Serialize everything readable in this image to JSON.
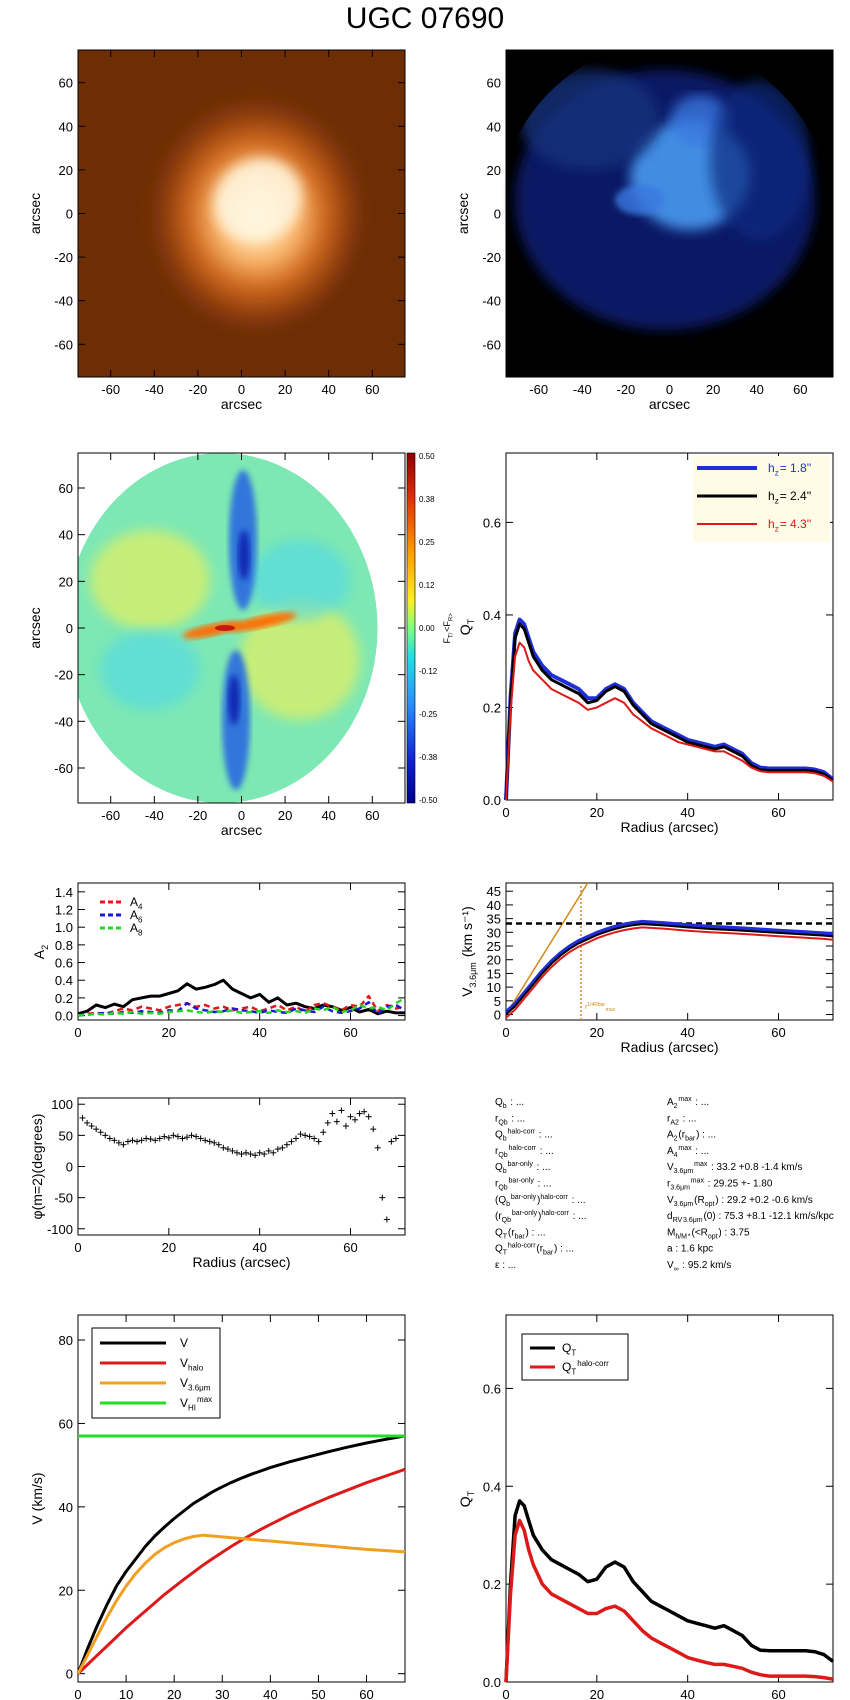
{
  "title": "UGC 07690",
  "colors": {
    "hz1": "#1f2ed6",
    "hz2": "#000000",
    "hz3": "#dd1a1a",
    "orange": "#f0a020",
    "green": "#22dd22",
    "vopt": "#d08a1a"
  },
  "chart_data": [
    {
      "id": "image-orange",
      "type": "heatmap",
      "description_visible": "galaxy image",
      "xlabel": "arcsec",
      "ylabel": "arcsec",
      "xlim": [
        -75,
        75
      ],
      "ylim": [
        -75,
        75
      ],
      "xticks": [
        -60,
        -40,
        -20,
        0,
        20,
        40,
        60
      ],
      "yticks": [
        -60,
        -40,
        -20,
        0,
        20,
        40,
        60
      ]
    },
    {
      "id": "image-blue",
      "type": "heatmap",
      "xlabel": "arcsec",
      "ylabel": "arcsec",
      "xlim": [
        -75,
        75
      ],
      "ylim": [
        -75,
        75
      ],
      "xticks": [
        -60,
        -40,
        -20,
        0,
        20,
        40,
        60
      ],
      "yticks": [
        -60,
        -40,
        -20,
        0,
        20,
        40,
        60
      ]
    },
    {
      "id": "force-map",
      "type": "heatmap",
      "xlabel": "arcsec",
      "ylabel": "arcsec",
      "xlim": [
        -75,
        75
      ],
      "ylim": [
        -75,
        75
      ],
      "xticks": [
        -60,
        -40,
        -20,
        0,
        20,
        40,
        60
      ],
      "yticks": [
        -60,
        -40,
        -20,
        0,
        20,
        40,
        60
      ],
      "colorbar_label": "F_T/<F_R>",
      "colorbar_ticks": [
        "0.50",
        "0.38",
        "0.25",
        "0.12",
        "0.00",
        "-0.12",
        "-0.25",
        "-0.38",
        "-0.50"
      ]
    },
    {
      "id": "qt-hz",
      "type": "line",
      "xlabel": "Radius (arcsec)",
      "ylabel": "Q_T",
      "xlim": [
        0,
        72
      ],
      "ylim": [
        0,
        0.75
      ],
      "xticks": [
        0,
        20,
        40,
        60
      ],
      "yticks": [
        "0.0",
        "0.2",
        "0.4",
        "0.6"
      ],
      "legend": [
        "h_z=  1.8''",
        "h_z=  2.4''",
        "h_z=  4.3''"
      ],
      "x": [
        0,
        1,
        2,
        3,
        4,
        5,
        6,
        8,
        10,
        12,
        14,
        16,
        18,
        20,
        22,
        24,
        26,
        28,
        30,
        32,
        34,
        36,
        38,
        40,
        42,
        44,
        46,
        48,
        50,
        52,
        54,
        56,
        58,
        60,
        62,
        64,
        66,
        68,
        70,
        72
      ],
      "series": [
        {
          "name": "h_z=  1.8''",
          "values": [
            0,
            0.22,
            0.36,
            0.39,
            0.38,
            0.35,
            0.32,
            0.29,
            0.27,
            0.26,
            0.25,
            0.24,
            0.22,
            0.22,
            0.24,
            0.25,
            0.24,
            0.21,
            0.19,
            0.17,
            0.16,
            0.15,
            0.14,
            0.13,
            0.125,
            0.12,
            0.115,
            0.12,
            0.11,
            0.1,
            0.08,
            0.07,
            0.068,
            0.068,
            0.068,
            0.068,
            0.068,
            0.066,
            0.06,
            0.045
          ]
        },
        {
          "name": "h_z=  2.4''",
          "values": [
            0,
            0.21,
            0.35,
            0.38,
            0.37,
            0.34,
            0.31,
            0.28,
            0.26,
            0.25,
            0.24,
            0.23,
            0.21,
            0.215,
            0.235,
            0.245,
            0.235,
            0.205,
            0.185,
            0.165,
            0.155,
            0.145,
            0.135,
            0.125,
            0.12,
            0.115,
            0.11,
            0.115,
            0.105,
            0.095,
            0.075,
            0.065,
            0.064,
            0.064,
            0.064,
            0.064,
            0.064,
            0.062,
            0.056,
            0.042
          ]
        },
        {
          "name": "h_z=  4.3''",
          "values": [
            0,
            0.19,
            0.31,
            0.34,
            0.33,
            0.3,
            0.28,
            0.26,
            0.24,
            0.23,
            0.22,
            0.21,
            0.195,
            0.2,
            0.21,
            0.22,
            0.21,
            0.185,
            0.17,
            0.155,
            0.145,
            0.135,
            0.125,
            0.12,
            0.115,
            0.11,
            0.105,
            0.105,
            0.095,
            0.085,
            0.07,
            0.062,
            0.06,
            0.06,
            0.06,
            0.06,
            0.06,
            0.058,
            0.052,
            0.04
          ]
        }
      ]
    },
    {
      "id": "fourier-amp",
      "type": "line",
      "ylabel": "A_2",
      "xlim": [
        0,
        72
      ],
      "ylim": [
        -0.05,
        1.5
      ],
      "xticks": [
        0,
        20,
        40,
        60
      ],
      "yticks": [
        "0.0",
        "0.2",
        "0.4",
        "0.6",
        "0.8",
        "1.0",
        "1.2",
        "1.4"
      ],
      "legend": [
        "A_4",
        "A_6",
        "A_8"
      ],
      "x": [
        0,
        2,
        4,
        6,
        8,
        10,
        12,
        14,
        16,
        18,
        20,
        22,
        24,
        26,
        28,
        30,
        32,
        34,
        36,
        38,
        40,
        42,
        44,
        46,
        48,
        50,
        52,
        54,
        56,
        58,
        60,
        62,
        64,
        66,
        68,
        70,
        72
      ],
      "series": [
        {
          "name": "A_2",
          "values": [
            0.02,
            0.05,
            0.12,
            0.09,
            0.13,
            0.1,
            0.18,
            0.2,
            0.22,
            0.22,
            0.25,
            0.28,
            0.36,
            0.3,
            0.32,
            0.35,
            0.4,
            0.3,
            0.25,
            0.2,
            0.24,
            0.15,
            0.2,
            0.12,
            0.14,
            0.1,
            0.08,
            0.12,
            0.1,
            0.06,
            0.09,
            0.04,
            0.07,
            0.02,
            0.05,
            0.03,
            0.03
          ]
        },
        {
          "name": "A_4",
          "values": [
            0.0,
            0.02,
            0.03,
            0.02,
            0.05,
            0.08,
            0.06,
            0.1,
            0.08,
            0.06,
            0.1,
            0.12,
            0.14,
            0.1,
            0.12,
            0.08,
            0.1,
            0.06,
            0.08,
            0.1,
            0.05,
            0.08,
            0.12,
            0.06,
            0.1,
            0.04,
            0.12,
            0.14,
            0.1,
            0.06,
            0.12,
            0.1,
            0.22,
            0.05,
            0.12,
            0.08,
            0.1
          ]
        },
        {
          "name": "A_6",
          "values": [
            0.0,
            0.01,
            0.02,
            0.03,
            0.02,
            0.04,
            0.03,
            0.05,
            0.04,
            0.03,
            0.06,
            0.05,
            0.14,
            0.08,
            0.06,
            0.04,
            0.05,
            0.08,
            0.06,
            0.05,
            0.03,
            0.06,
            0.04,
            0.03,
            0.08,
            0.06,
            0.04,
            0.1,
            0.05,
            0.03,
            0.05,
            0.08,
            0.15,
            0.02,
            0.1,
            0.12,
            0.06
          ]
        },
        {
          "name": "A_8",
          "values": [
            0.0,
            0.01,
            0.02,
            0.01,
            0.03,
            0.02,
            0.04,
            0.02,
            0.03,
            0.02,
            0.04,
            0.05,
            0.06,
            0.04,
            0.03,
            0.05,
            0.04,
            0.06,
            0.03,
            0.04,
            0.05,
            0.03,
            0.06,
            0.04,
            0.05,
            0.03,
            0.08,
            0.06,
            0.1,
            0.04,
            0.06,
            0.12,
            0.08,
            0.1,
            0.06,
            0.14,
            0.2
          ]
        }
      ]
    },
    {
      "id": "rotation-curve",
      "type": "line",
      "xlabel": "Radius (arcsec)",
      "ylabel": "V_3.6μm (km s⁻¹)",
      "xlim": [
        0,
        72
      ],
      "ylim": [
        -2,
        48
      ],
      "xticks": [
        0,
        20,
        40,
        60
      ],
      "yticks": [
        "0",
        "5",
        "10",
        "15",
        "20",
        "25",
        "30",
        "35",
        "40",
        "45"
      ],
      "annotation": "r^{1/4Rbar}_{max}",
      "vmax": 33.2,
      "vline_x": 16.5,
      "x": [
        0,
        2,
        4,
        6,
        8,
        10,
        12,
        14,
        16,
        18,
        20,
        22,
        24,
        26,
        28,
        30,
        35,
        40,
        45,
        50,
        55,
        60,
        65,
        70,
        72
      ],
      "series": [
        {
          "name": "V_3.6μm",
          "values": [
            0,
            3,
            7,
            11,
            15,
            18.5,
            21.5,
            24,
            26,
            27.5,
            29,
            30.2,
            31.2,
            32.0,
            32.6,
            33.0,
            32.5,
            31.8,
            31.2,
            30.8,
            30.3,
            29.8,
            29.3,
            28.8,
            28.5
          ]
        }
      ]
    },
    {
      "id": "phase",
      "type": "scatter",
      "xlabel": "Radius (arcsec)",
      "ylabel": "φ(m=2)(degrees)",
      "xlim": [
        0,
        72
      ],
      "ylim": [
        -110,
        110
      ],
      "xticks": [
        0,
        20,
        40,
        60
      ],
      "yticks": [
        "100",
        "50",
        "0",
        "-50",
        "-100"
      ],
      "x": [
        1,
        2,
        3,
        4,
        5,
        6,
        7,
        8,
        9,
        10,
        11,
        12,
        13,
        14,
        15,
        16,
        17,
        18,
        19,
        20,
        21,
        22,
        23,
        24,
        25,
        26,
        27,
        28,
        29,
        30,
        31,
        32,
        33,
        34,
        35,
        36,
        37,
        38,
        39,
        40,
        41,
        42,
        43,
        44,
        45,
        46,
        47,
        48,
        49,
        50,
        51,
        52,
        53,
        54,
        55,
        56,
        57,
        58,
        59,
        60,
        61,
        62,
        63,
        64,
        65,
        66,
        67,
        68,
        69,
        70
      ],
      "y": [
        78,
        70,
        65,
        60,
        55,
        50,
        45,
        42,
        38,
        35,
        40,
        42,
        40,
        42,
        45,
        44,
        42,
        45,
        48,
        46,
        50,
        48,
        45,
        47,
        50,
        48,
        45,
        42,
        40,
        38,
        35,
        30,
        28,
        25,
        22,
        20,
        22,
        20,
        18,
        22,
        20,
        25,
        22,
        28,
        30,
        35,
        40,
        45,
        52,
        50,
        48,
        45,
        40,
        55,
        70,
        85,
        72,
        90,
        65,
        80,
        75,
        85,
        88,
        80,
        60,
        30,
        -50,
        -85,
        40,
        45
      ]
    },
    {
      "id": "velocity-decomp",
      "type": "line",
      "xlabel": "Radius (arcsec)",
      "ylabel": "V (km/s)",
      "xlim": [
        0,
        68
      ],
      "ylim": [
        -2,
        86
      ],
      "xticks": [
        0,
        10,
        20,
        30,
        40,
        50,
        60
      ],
      "yticks": [
        "0",
        "20",
        "40",
        "60",
        "80"
      ],
      "legend": [
        "V",
        "V_halo",
        "V_3.6μm",
        "V_HI^max"
      ],
      "x": [
        0,
        2,
        4,
        6,
        8,
        10,
        12,
        14,
        16,
        18,
        20,
        22,
        24,
        26,
        28,
        30,
        32,
        34,
        36,
        38,
        40,
        44,
        48,
        52,
        56,
        60,
        64,
        68
      ],
      "series": [
        {
          "name": "V",
          "values": [
            0,
            6,
            11.5,
            16.5,
            21,
            24.5,
            27.5,
            30.5,
            33,
            35.2,
            37.2,
            39,
            40.8,
            42.2,
            43.6,
            44.8,
            45.9,
            46.9,
            47.8,
            48.6,
            49.4,
            50.8,
            52,
            53.2,
            54.3,
            55.3,
            56.2,
            57
          ]
        },
        {
          "name": "V_halo",
          "values": [
            0,
            2.2,
            4.4,
            6.6,
            8.8,
            11,
            13,
            15,
            17,
            19,
            20.8,
            22.6,
            24.3,
            26,
            27.6,
            29.1,
            30.6,
            32,
            33.3,
            34.6,
            35.8,
            38.1,
            40.2,
            42.2,
            44,
            45.8,
            47.4,
            49
          ]
        },
        {
          "name": "V_3.6μm",
          "values": [
            0,
            4.5,
            9,
            13.5,
            17.5,
            21,
            24,
            26.5,
            28.6,
            30.2,
            31.4,
            32.3,
            32.9,
            33.2,
            33.0,
            32.8,
            32.6,
            32.4,
            32.2,
            32.0,
            31.8,
            31.4,
            31.0,
            30.6,
            30.2,
            29.8,
            29.5,
            29.2
          ]
        }
      ],
      "vhi_max": 57
    },
    {
      "id": "qt-halo",
      "type": "line",
      "xlabel": "Radius (arcsec)",
      "ylabel": "Q_T",
      "xlim": [
        0,
        72
      ],
      "ylim": [
        0,
        0.75
      ],
      "xticks": [
        0,
        20,
        40,
        60
      ],
      "yticks": [
        "0.0",
        "0.2",
        "0.4",
        "0.6"
      ],
      "legend": [
        "Q_T",
        "Q_T^halo-corr"
      ],
      "x": [
        0,
        1,
        2,
        3,
        4,
        5,
        6,
        8,
        10,
        12,
        14,
        16,
        18,
        20,
        22,
        24,
        26,
        28,
        30,
        32,
        34,
        36,
        38,
        40,
        42,
        44,
        46,
        48,
        50,
        52,
        54,
        56,
        58,
        60,
        62,
        64,
        66,
        68,
        70,
        72
      ],
      "series": [
        {
          "name": "Q_T",
          "values": [
            0,
            0.2,
            0.34,
            0.37,
            0.36,
            0.33,
            0.3,
            0.27,
            0.25,
            0.24,
            0.23,
            0.22,
            0.205,
            0.21,
            0.235,
            0.245,
            0.235,
            0.205,
            0.185,
            0.165,
            0.155,
            0.145,
            0.135,
            0.125,
            0.12,
            0.115,
            0.11,
            0.115,
            0.105,
            0.095,
            0.075,
            0.065,
            0.064,
            0.064,
            0.064,
            0.064,
            0.064,
            0.062,
            0.056,
            0.042
          ]
        },
        {
          "name": "Q_T^halo-corr",
          "values": [
            0,
            0.18,
            0.3,
            0.33,
            0.31,
            0.27,
            0.24,
            0.2,
            0.18,
            0.17,
            0.16,
            0.15,
            0.14,
            0.14,
            0.15,
            0.155,
            0.145,
            0.125,
            0.105,
            0.09,
            0.08,
            0.07,
            0.06,
            0.05,
            0.045,
            0.04,
            0.036,
            0.036,
            0.032,
            0.028,
            0.02,
            0.015,
            0.012,
            0.012,
            0.012,
            0.012,
            0.012,
            0.011,
            0.009,
            0.006
          ]
        }
      ]
    }
  ],
  "params_left": [
    "Q_b : ...",
    "r_Qb : ...",
    "Q_b^halo-corr : ...",
    "r_Qb^halo-corr : ...",
    "Q_b^bar-only : ...",
    "r_Qb^bar-only : ...",
    "(Q_b^bar-only)^halo-corr : ...",
    "(r_Qb^bar-only)^halo-corr : ...",
    "Q_T(r_bar) : ...",
    "Q_T^halo-corr(r_bar) : ...",
    "ε : ..."
  ],
  "params_right": [
    "A_2^max : ...",
    "r_A2 : ...",
    "A_2(r_bar) : ...",
    "A_4^max : ...",
    "V_3.6μm^max :  33.2 +0.8 -1.4 km/s",
    "r_3.6μm^max :  29.25 +- 1.80",
    "V_3.6μm(R_opt) :  29.2 +0.2 -0.6 km/s",
    "d_RV_3.6μm(0) :  75.3 +8.1 -12.1 km/s/kpc",
    "M_h/M_*(<R_opt) :  3.75",
    "a :  1.6 kpc",
    "V_∞ :  95.2 km/s"
  ]
}
